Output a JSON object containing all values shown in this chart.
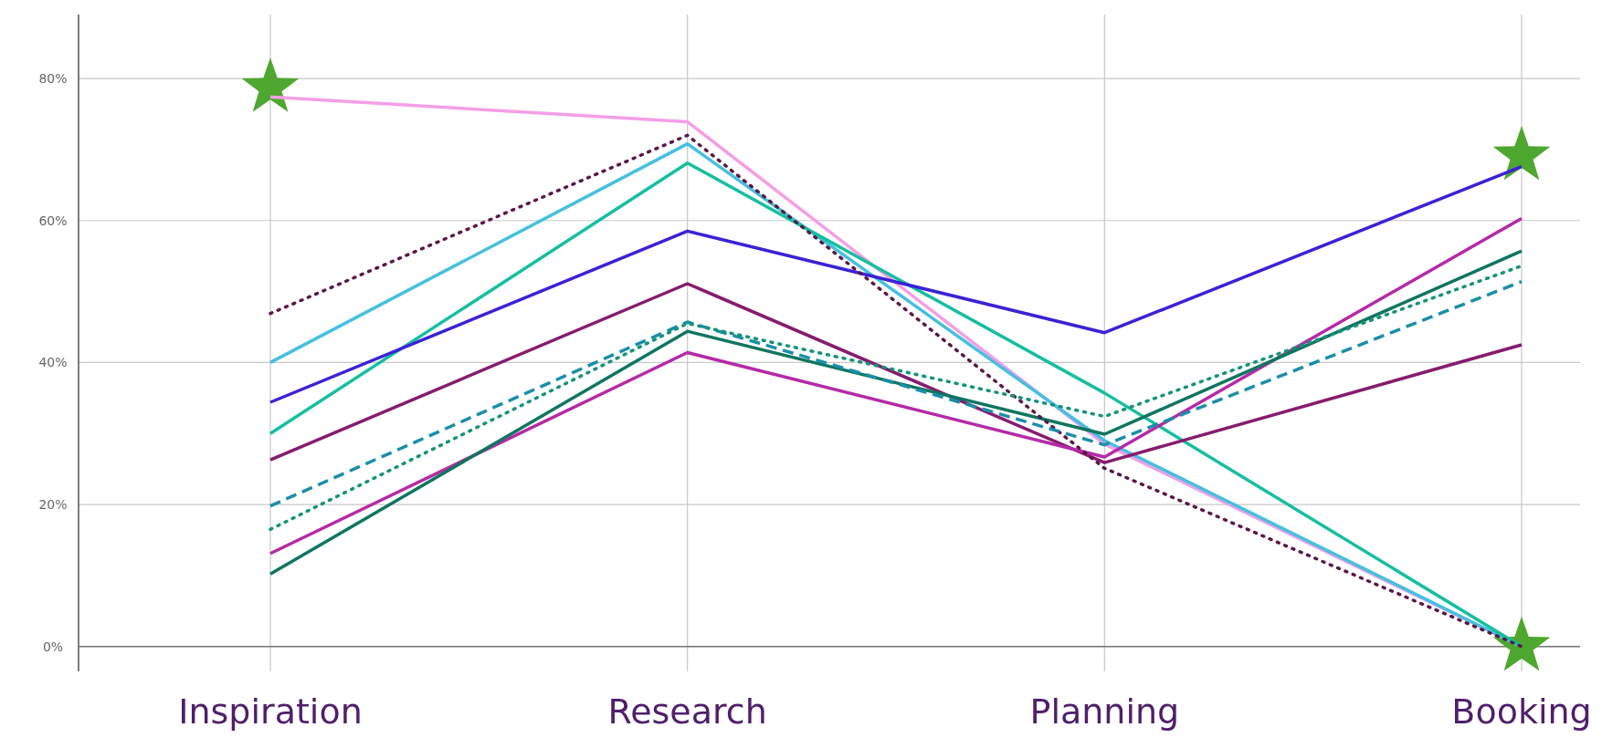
{
  "chart_data": {
    "type": "line",
    "categories": [
      "Inspiration",
      "Research",
      "Planning",
      "Booking"
    ],
    "ylim": [
      -3.5,
      89
    ],
    "yticks": [
      {
        "value": 0,
        "label": "0%"
      },
      {
        "value": 20,
        "label": "20%"
      },
      {
        "value": 40,
        "label": "40%"
      },
      {
        "value": 60,
        "label": "60%"
      },
      {
        "value": 80,
        "label": "80%"
      }
    ],
    "grid": true,
    "marker": "none",
    "series": [
      {
        "color": "#f49ee6",
        "line_style": "solid",
        "values": [
          77.4,
          73.9,
          28.5,
          0
        ]
      },
      {
        "color": "#5a1846",
        "line_style": "dotted",
        "values": [
          46.9,
          72,
          25.1,
          0
        ]
      },
      {
        "color": "#45c0e0",
        "line_style": "solid",
        "values": [
          40,
          70.8,
          29,
          0
        ]
      },
      {
        "color": "#14bfa0",
        "line_style": "solid",
        "values": [
          30,
          68.1,
          35.7,
          0
        ]
      },
      {
        "color": "#3a22d6",
        "line_style": "solid",
        "values": [
          34.4,
          58.5,
          44.2,
          67.6
        ]
      },
      {
        "color": "#861c6e",
        "line_style": "solid",
        "values": [
          26.3,
          51.1,
          25.9,
          42.5
        ]
      },
      {
        "color": "#1a8fa8",
        "line_style": "dashed",
        "values": [
          19.8,
          45.7,
          28.4,
          51.4
        ]
      },
      {
        "color": "#14937a",
        "line_style": "dotted",
        "values": [
          16.5,
          45.5,
          32.4,
          53.6
        ]
      },
      {
        "color": "#b52aa6",
        "line_style": "solid",
        "values": [
          13.1,
          41.4,
          26.7,
          60.3
        ]
      },
      {
        "color": "#0e7660",
        "line_style": "solid",
        "values": [
          10.2,
          44.4,
          29.9,
          55.7
        ]
      },
      {
        "type": "scatter",
        "color": "#4ea72e",
        "marker": "star",
        "x": [
          "Inspiration",
          "Booking",
          "Booking"
        ],
        "values": [
          78.7,
          69.1,
          0
        ]
      }
    ]
  }
}
